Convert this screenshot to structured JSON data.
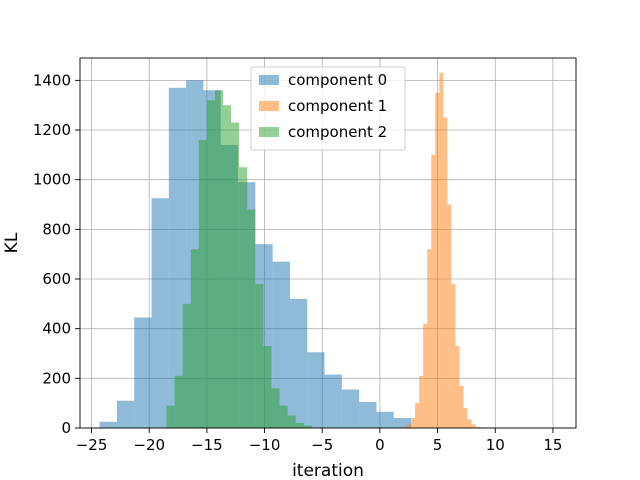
{
  "chart_data": {
    "type": "bar",
    "subtype": "histogram",
    "xlabel": "iteration",
    "ylabel": "KL",
    "xlim": [
      -26,
      17
    ],
    "ylim": [
      0,
      1490
    ],
    "xticks": [
      -25,
      -20,
      -15,
      -10,
      -5,
      0,
      5,
      10,
      15
    ],
    "xtick_labels": [
      "−25",
      "−20",
      "−15",
      "−10",
      "−5",
      "0",
      "5",
      "10",
      "15"
    ],
    "yticks": [
      0,
      200,
      400,
      600,
      800,
      1000,
      1200,
      1400
    ],
    "ytick_labels": [
      "0",
      "200",
      "400",
      "600",
      "800",
      "1000",
      "1200",
      "1400"
    ],
    "grid": true,
    "legend_position": "top-center",
    "series": [
      {
        "name": "component 0",
        "color": "#1f77b4",
        "alpha": 0.5,
        "bin_edges": [
          -24.3,
          -22.8,
          -21.3,
          -19.8,
          -18.3,
          -16.8,
          -15.3,
          -13.8,
          -12.3,
          -10.8,
          -9.3,
          -7.8,
          -6.3,
          -4.8,
          -3.3,
          -1.8,
          -0.3,
          1.2,
          2.7
        ],
        "counts": [
          25,
          110,
          445,
          925,
          1370,
          1400,
          1360,
          1140,
          990,
          740,
          670,
          520,
          305,
          215,
          155,
          105,
          65,
          40
        ]
      },
      {
        "name": "component 1",
        "color": "#ff7f0e",
        "alpha": 0.5,
        "bin_edges": [
          2.0,
          2.35,
          2.7,
          3.05,
          3.4,
          3.75,
          4.1,
          4.45,
          4.8,
          5.15,
          5.5,
          5.85,
          6.2,
          6.55,
          6.9,
          7.25,
          7.6,
          7.95,
          8.3,
          8.65,
          9.0,
          9.35,
          9.7,
          10.05,
          10.4,
          10.75,
          11.1,
          11.45,
          11.8,
          12.15,
          12.5,
          12.85,
          13.2,
          13.55,
          13.9,
          14.25,
          14.6,
          14.95,
          15.3,
          15.65
        ],
        "counts": [
          5,
          15,
          40,
          100,
          210,
          420,
          720,
          1100,
          1350,
          1430,
          1250,
          900,
          580,
          330,
          170,
          80,
          35,
          15,
          5,
          3,
          2,
          1,
          0,
          0,
          0,
          0,
          0,
          0,
          0,
          0,
          0,
          0,
          0,
          0,
          0,
          0,
          0,
          0,
          2
        ]
      },
      {
        "name": "component 2",
        "color": "#2ca02c",
        "alpha": 0.5,
        "bin_edges": [
          -18.5,
          -17.8,
          -17.1,
          -16.4,
          -15.7,
          -15.0,
          -14.3,
          -13.6,
          -12.9,
          -12.2,
          -11.5,
          -10.8,
          -10.1,
          -9.4,
          -8.7,
          -8.0,
          -7.3,
          -6.6,
          -5.9
        ],
        "counts": [
          90,
          210,
          500,
          720,
          1160,
          1320,
          1360,
          1300,
          1230,
          1050,
          880,
          580,
          330,
          160,
          90,
          50,
          20,
          10
        ]
      }
    ]
  }
}
